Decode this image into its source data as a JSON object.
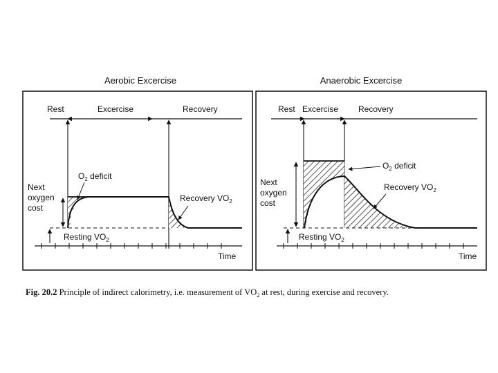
{
  "panels": {
    "aerobic": {
      "title": "Aerobic Excercise",
      "phase_rest": "Rest",
      "phase_exercise": "Excercise",
      "phase_recovery": "Recovery",
      "o2_deficit": "O",
      "o2_deficit_sub": "2",
      "o2_deficit_rest": " deficit",
      "next_oxygen_cost": [
        "Next",
        "oxygen",
        "cost"
      ],
      "recovery_vo2": "Recovery  VO",
      "recovery_vo2_sub": "2",
      "resting_vo2": "Resting  VO",
      "resting_vo2_sub": "2",
      "time_label": "Time"
    },
    "anaerobic": {
      "title": "Anaerobic Excercise",
      "phase_rest": "Rest",
      "phase_exercise": "Excercise",
      "phase_recovery": "Recovery",
      "o2_deficit": "O",
      "o2_deficit_sub": "2",
      "o2_deficit_rest": " deficit",
      "next_oxygen_cost": [
        "Next",
        "oxygen",
        "cost"
      ],
      "recovery_vo2": "Recovery  VO",
      "recovery_vo2_sub": "2",
      "resting_vo2": "Resting  VO",
      "resting_vo2_sub": "2",
      "time_label": "Time"
    }
  },
  "caption": {
    "label": "Fig. 20.2",
    "text": " Principle of indirect calorimetry, i.e. measurement of VO",
    "sub": "2",
    "text2": " at rest,  during exercise and recovery."
  }
}
